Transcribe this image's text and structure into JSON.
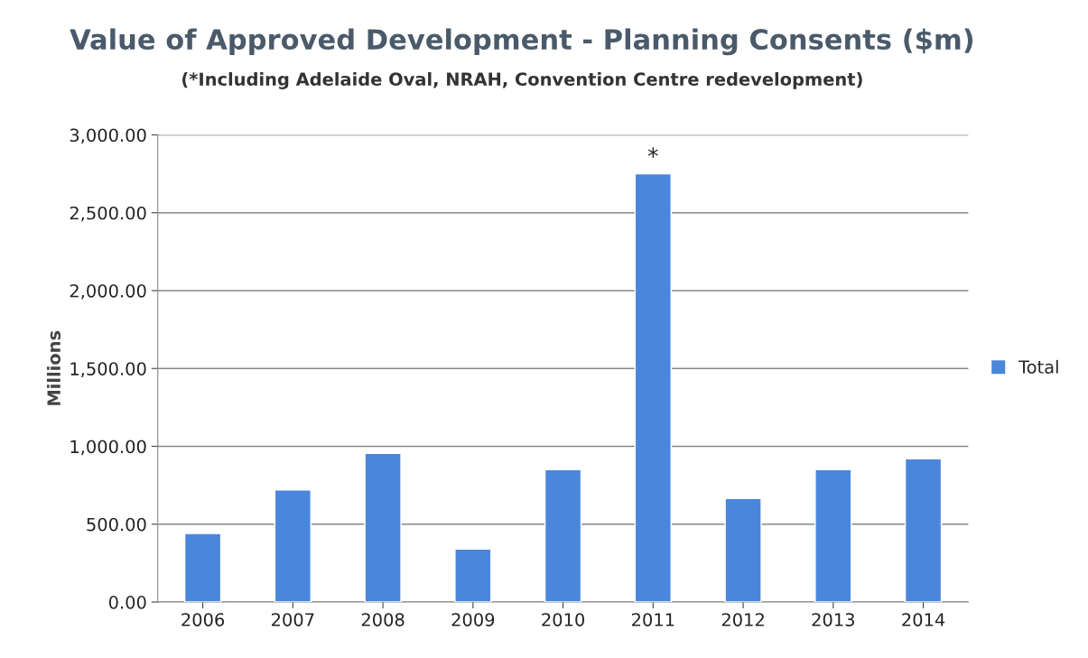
{
  "chart_data": {
    "type": "bar",
    "title": "Value of Approved Development - Planning Consents ($m)",
    "subtitle": "(*Including Adelaide Oval, NRAH, Convention Centre redevelopment)",
    "ylabel": "Millions",
    "categories": [
      "2006",
      "2007",
      "2008",
      "2009",
      "2010",
      "2011",
      "2012",
      "2013",
      "2014"
    ],
    "series": [
      {
        "name": "Total",
        "color": "#4a86dc",
        "values": [
          440,
          720,
          955,
          340,
          850,
          2750,
          665,
          850,
          920
        ]
      }
    ],
    "ylim": [
      0,
      3000
    ],
    "yticks": [
      {
        "value": 0,
        "label": "0.00"
      },
      {
        "value": 500,
        "label": "500.00"
      },
      {
        "value": 1000,
        "label": "1,000.00"
      },
      {
        "value": 1500,
        "label": "1,500.00"
      },
      {
        "value": 2000,
        "label": "2,000.00"
      },
      {
        "value": 2500,
        "label": "2,500.00"
      },
      {
        "value": 3000,
        "label": "3,000.00"
      }
    ],
    "annotations": [
      {
        "text": "*",
        "x": "2011",
        "y": 2750
      }
    ],
    "grid": "y",
    "legend": "right"
  }
}
